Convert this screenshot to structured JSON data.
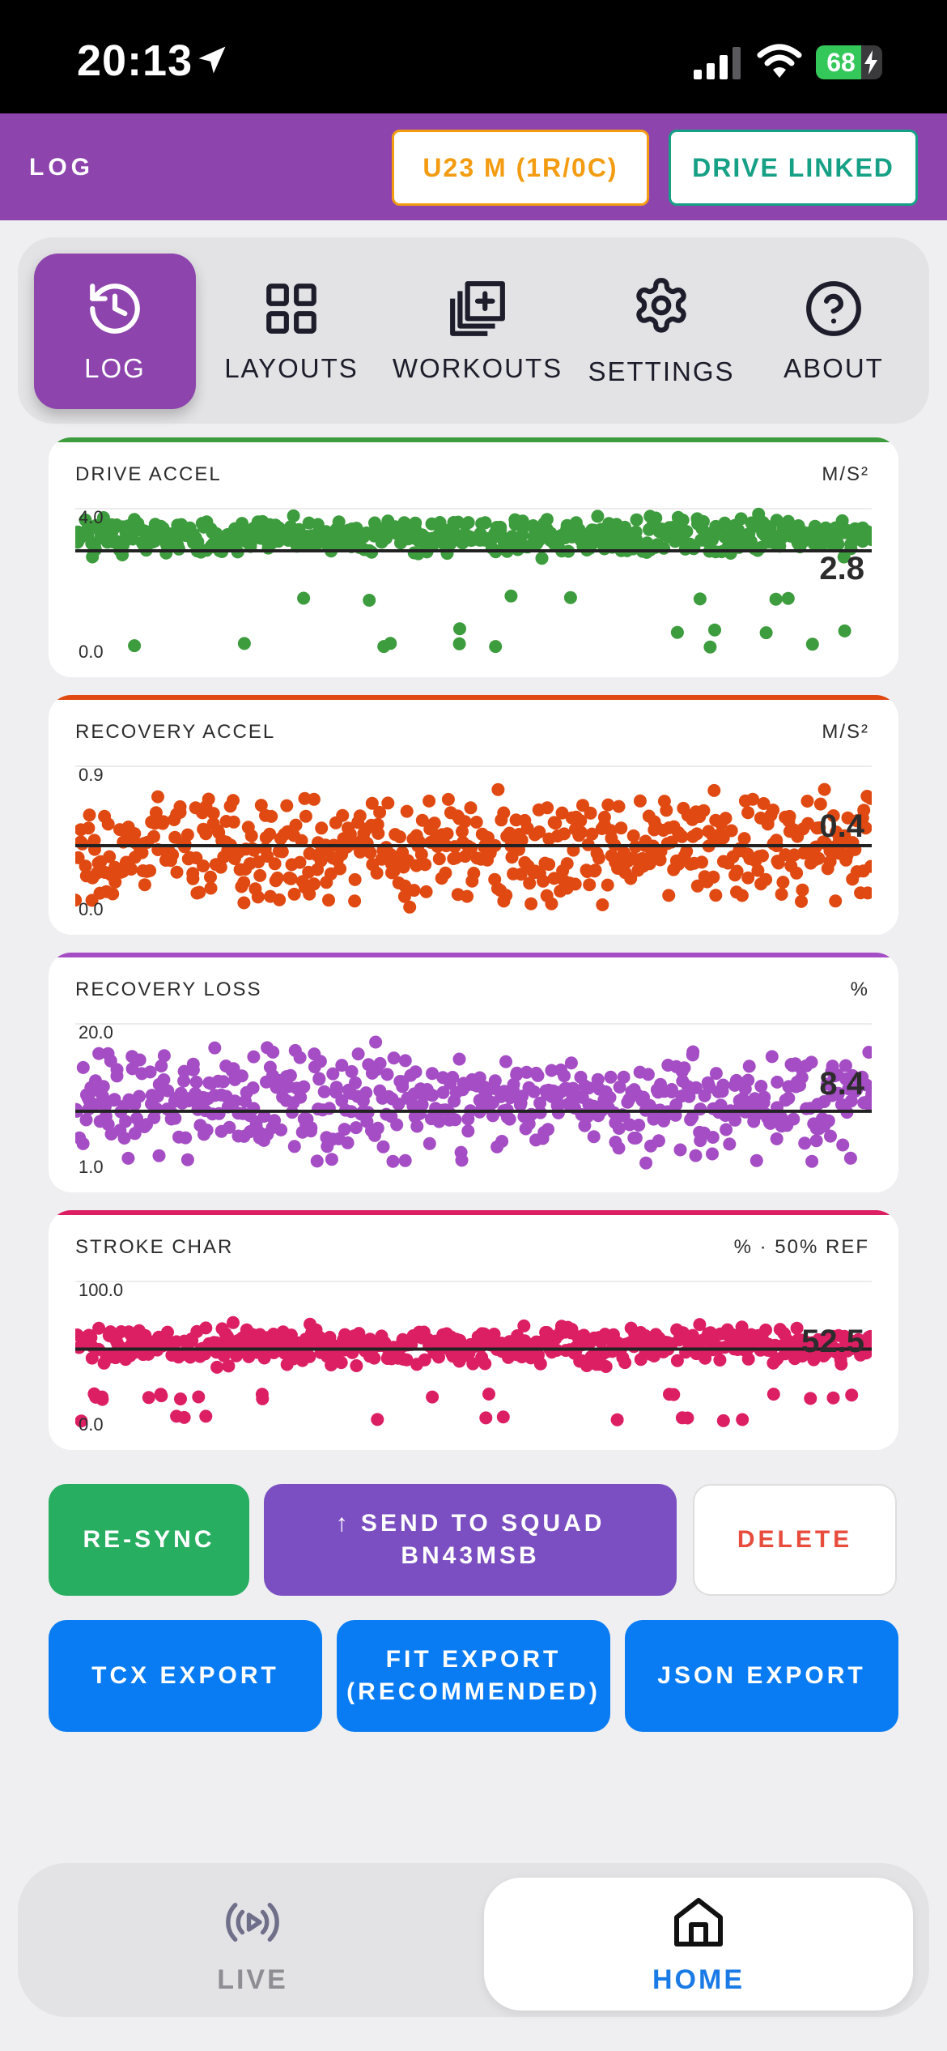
{
  "status": {
    "time": "20:13",
    "battery": "68",
    "battery_level": 0.68
  },
  "header": {
    "title": "LOG",
    "class_label": "U23 M (1R/0C)",
    "drive_label": "DRIVE LINKED",
    "accent": "#8e44ad"
  },
  "nav": {
    "items": [
      {
        "label": "LOG",
        "icon": "history-icon",
        "active": true
      },
      {
        "label": "LAYOUTS",
        "icon": "grid-icon",
        "active": false
      },
      {
        "label": "WORKOUTS",
        "icon": "copy-plus-icon",
        "active": false
      },
      {
        "label": "SETTINGS",
        "icon": "gear-icon",
        "active": false
      },
      {
        "label": "ABOUT",
        "icon": "help-circle-icon",
        "active": false
      }
    ]
  },
  "charts": [
    {
      "title": "DRIVE ACCEL",
      "unit": "M/S²",
      "ymax_label": "4.0",
      "ymin_label": "0.0",
      "current": "2.8",
      "color": "#3d9c3d"
    },
    {
      "title": "RECOVERY ACCEL",
      "unit": "M/S²",
      "ymax_label": "0.9",
      "ymin_label": "0.0",
      "current": "0.4",
      "color": "#e04a12"
    },
    {
      "title": "RECOVERY LOSS",
      "unit": "%",
      "ymax_label": "20.0",
      "ymin_label": "1.0",
      "current": "8.4",
      "color": "#a44dc4"
    },
    {
      "title": "STROKE CHAR",
      "unit": "% · 50% REF",
      "ymax_label": "100.0",
      "ymin_label": "0.0",
      "current": "52.5",
      "color": "#dc1f63"
    }
  ],
  "chart_data": [
    {
      "type": "scatter",
      "title": "DRIVE ACCEL",
      "ylabel": "M/S²",
      "ylim": [
        0.0,
        4.0
      ],
      "reference": 2.8,
      "center": 3.2,
      "spread": 0.45,
      "outliers": [
        1.5,
        0.6,
        0.2
      ]
    },
    {
      "type": "scatter",
      "title": "RECOVERY ACCEL",
      "ylabel": "M/S²",
      "ylim": [
        0.0,
        0.9
      ],
      "reference": 0.4,
      "center": 0.4,
      "spread": 0.3,
      "outliers": [
        0.1,
        0.05
      ]
    },
    {
      "type": "scatter",
      "title": "RECOVERY LOSS",
      "ylabel": "%",
      "ylim": [
        1.0,
        20.0
      ],
      "reference": 8.4,
      "center": 10.0,
      "spread": 5.5,
      "outliers": [
        2.0,
        4.0
      ]
    },
    {
      "type": "scatter",
      "title": "STROKE CHAR",
      "ylabel": "% · 50% REF",
      "ylim": [
        0.0,
        100.0
      ],
      "reference": 52.5,
      "center": 55.0,
      "spread": 12.0,
      "outliers": [
        20.0,
        5.0
      ]
    }
  ],
  "actions": {
    "resync": "RE-SYNC",
    "send": "↑ SEND TO SQUAD BN43MSB",
    "delete": "DELETE",
    "tcx": "TCX EXPORT",
    "fit": "FIT EXPORT (RECOMMENDED)",
    "json": "JSON EXPORT"
  },
  "tabs": {
    "live": "LIVE",
    "home": "HOME"
  }
}
